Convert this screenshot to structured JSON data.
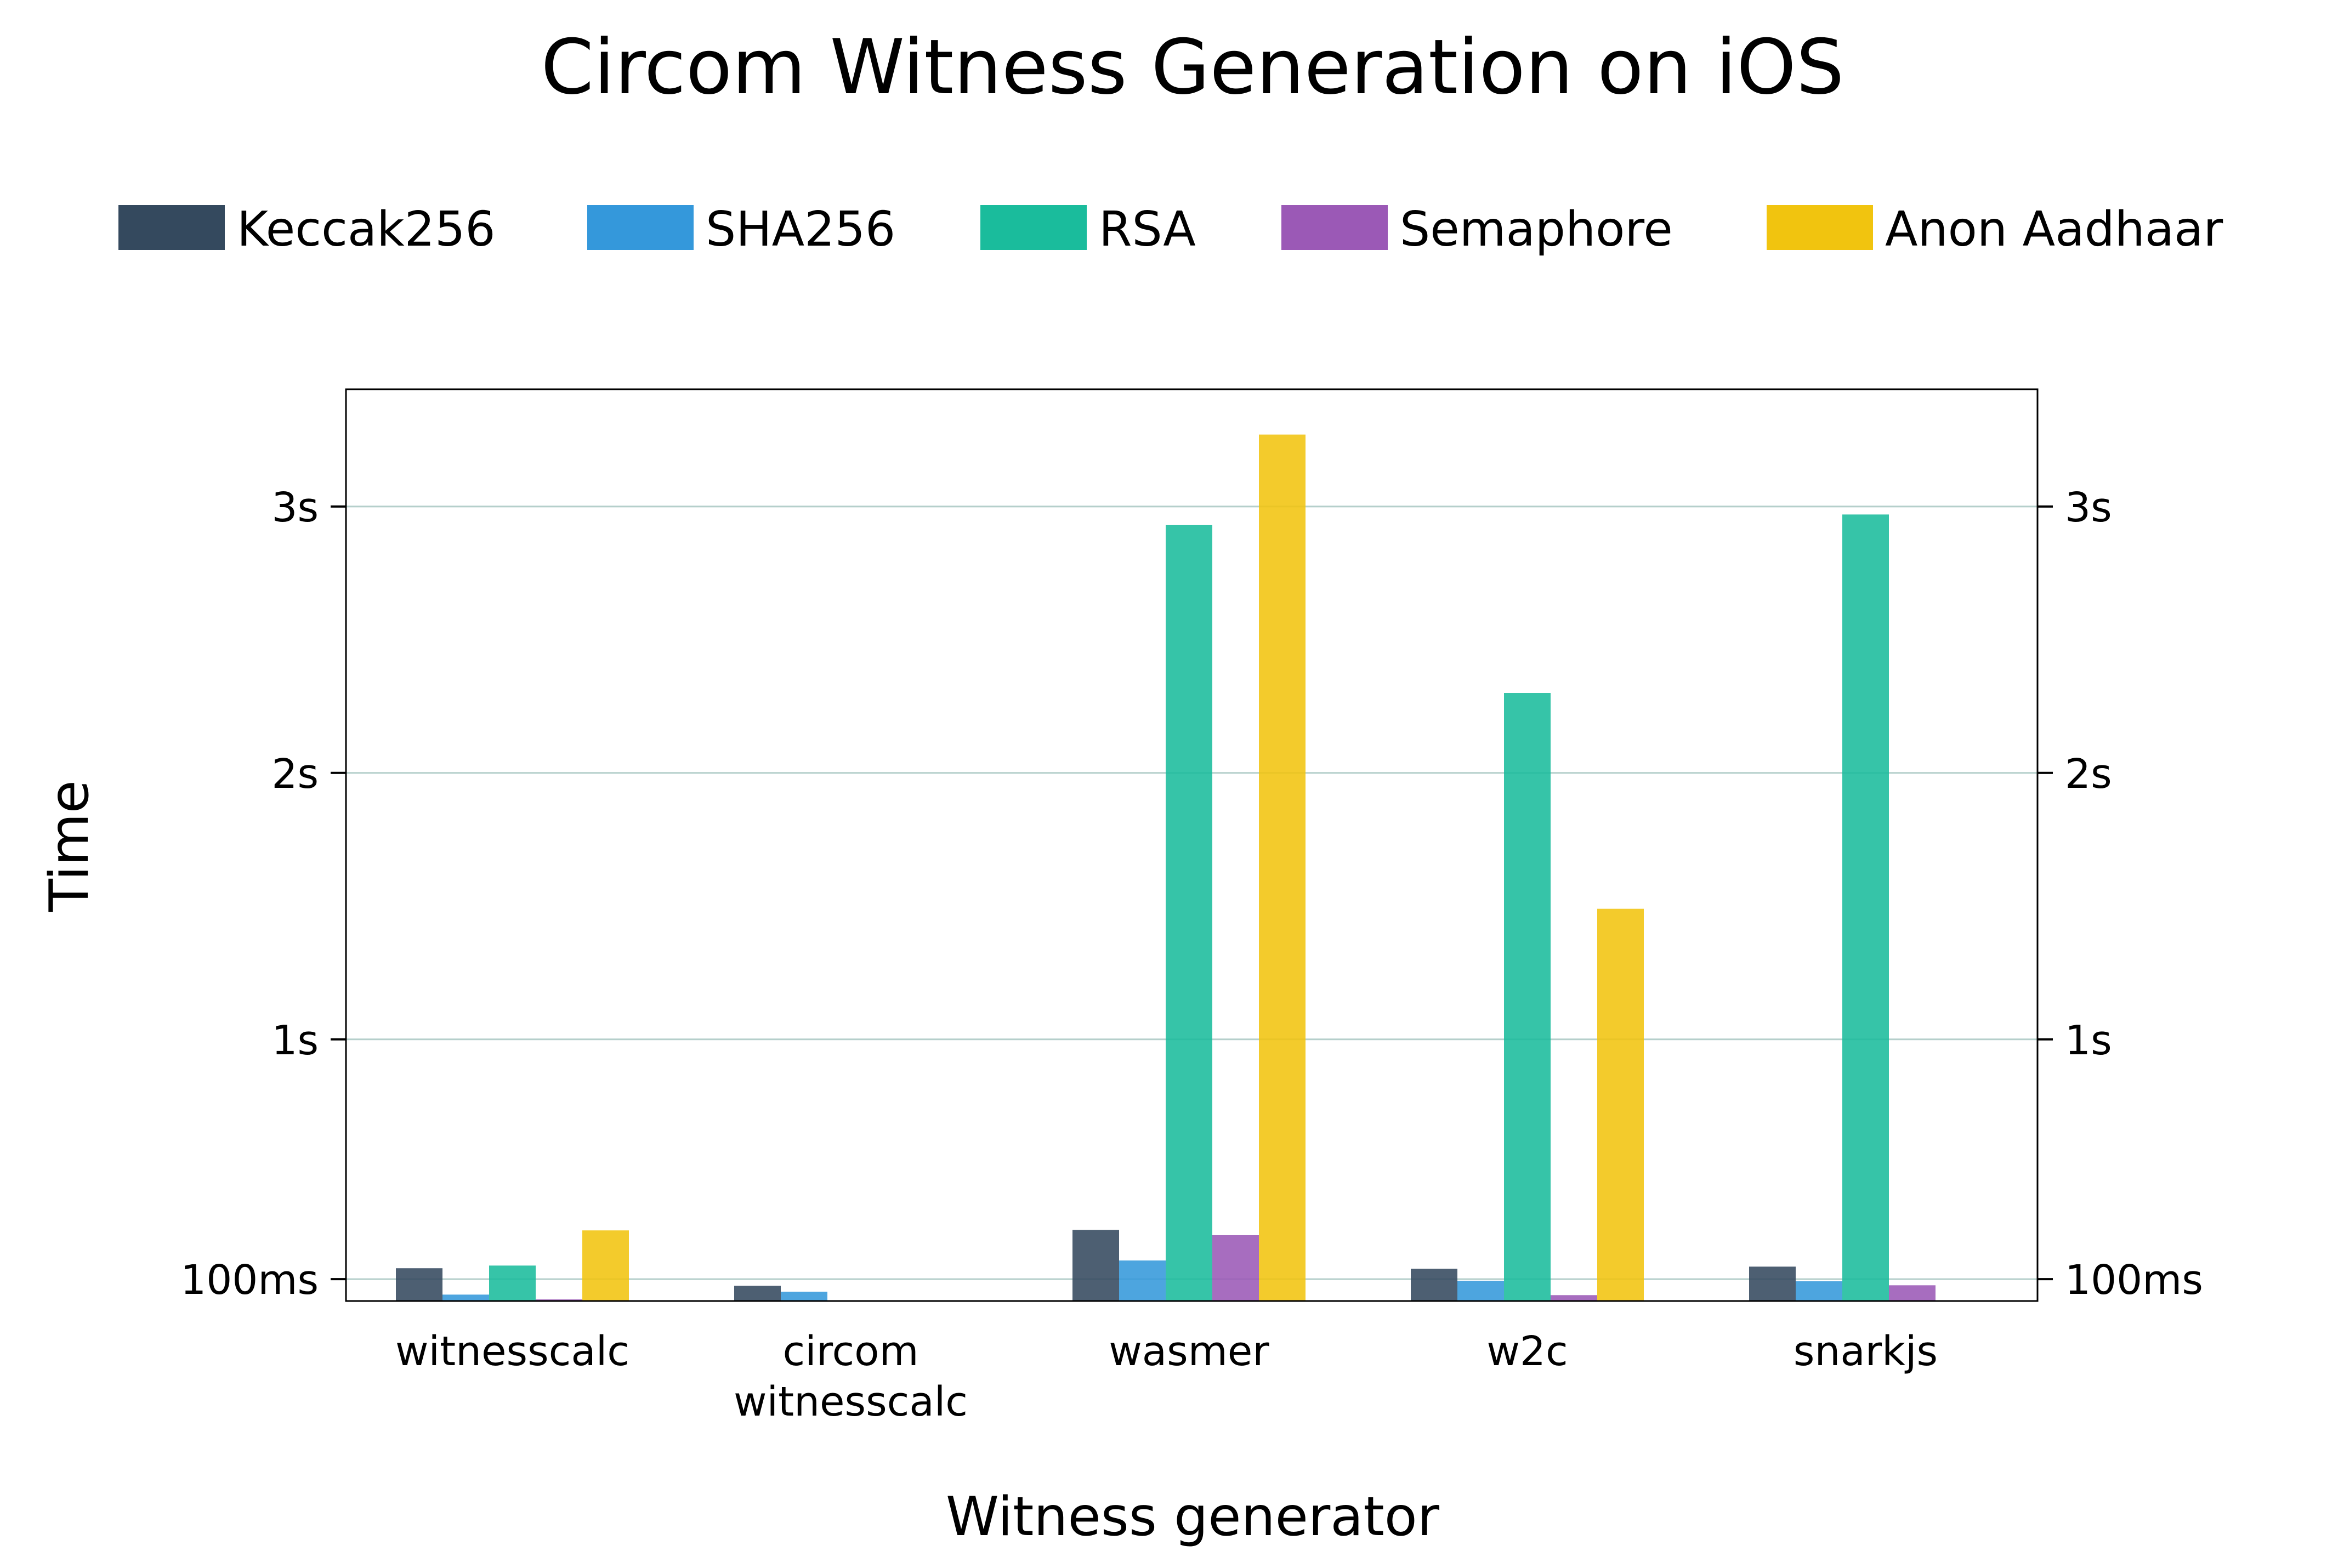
{
  "chart_data": {
    "type": "bar",
    "title": "Circom Witness Generation on iOS",
    "xlabel": "Witness generator",
    "ylabel": "Time",
    "categories": [
      "witnesscalc",
      "circom witnesscalc",
      "wasmer",
      "w2c",
      "snarkjs"
    ],
    "category_lines": [
      [
        "witnesscalc"
      ],
      [
        "circom",
        "witnesscalc"
      ],
      [
        "wasmer"
      ],
      [
        "w2c"
      ],
      [
        "snarkjs"
      ]
    ],
    "unit": "s",
    "ylim": [
      0.018,
      3.44
    ],
    "yticks": [
      {
        "value": 0.1,
        "label": "100ms"
      },
      {
        "value": 1,
        "label": "1s"
      },
      {
        "value": 2,
        "label": "2s"
      },
      {
        "value": 3,
        "label": "3s"
      }
    ],
    "grid": true,
    "legend_position": "top",
    "series": [
      {
        "name": "Keccak256",
        "color": "#34495e",
        "values": [
          0.141,
          0.075,
          0.285,
          0.139,
          0.147
        ]
      },
      {
        "name": "SHA256",
        "color": "#3498db",
        "values": [
          0.042,
          0.053,
          0.17,
          0.094,
          0.092
        ]
      },
      {
        "name": "RSA",
        "color": "#1abc9c",
        "values": [
          0.151,
          null,
          2.93,
          2.3,
          2.97
        ]
      },
      {
        "name": "Semaphore",
        "color": "#9b59b6",
        "values": [
          0.024,
          null,
          0.265,
          0.04,
          0.077
        ]
      },
      {
        "name": "Anon Aadhaar",
        "color": "#f1c40f",
        "values": [
          0.283,
          null,
          3.27,
          1.49,
          null
        ]
      }
    ]
  }
}
